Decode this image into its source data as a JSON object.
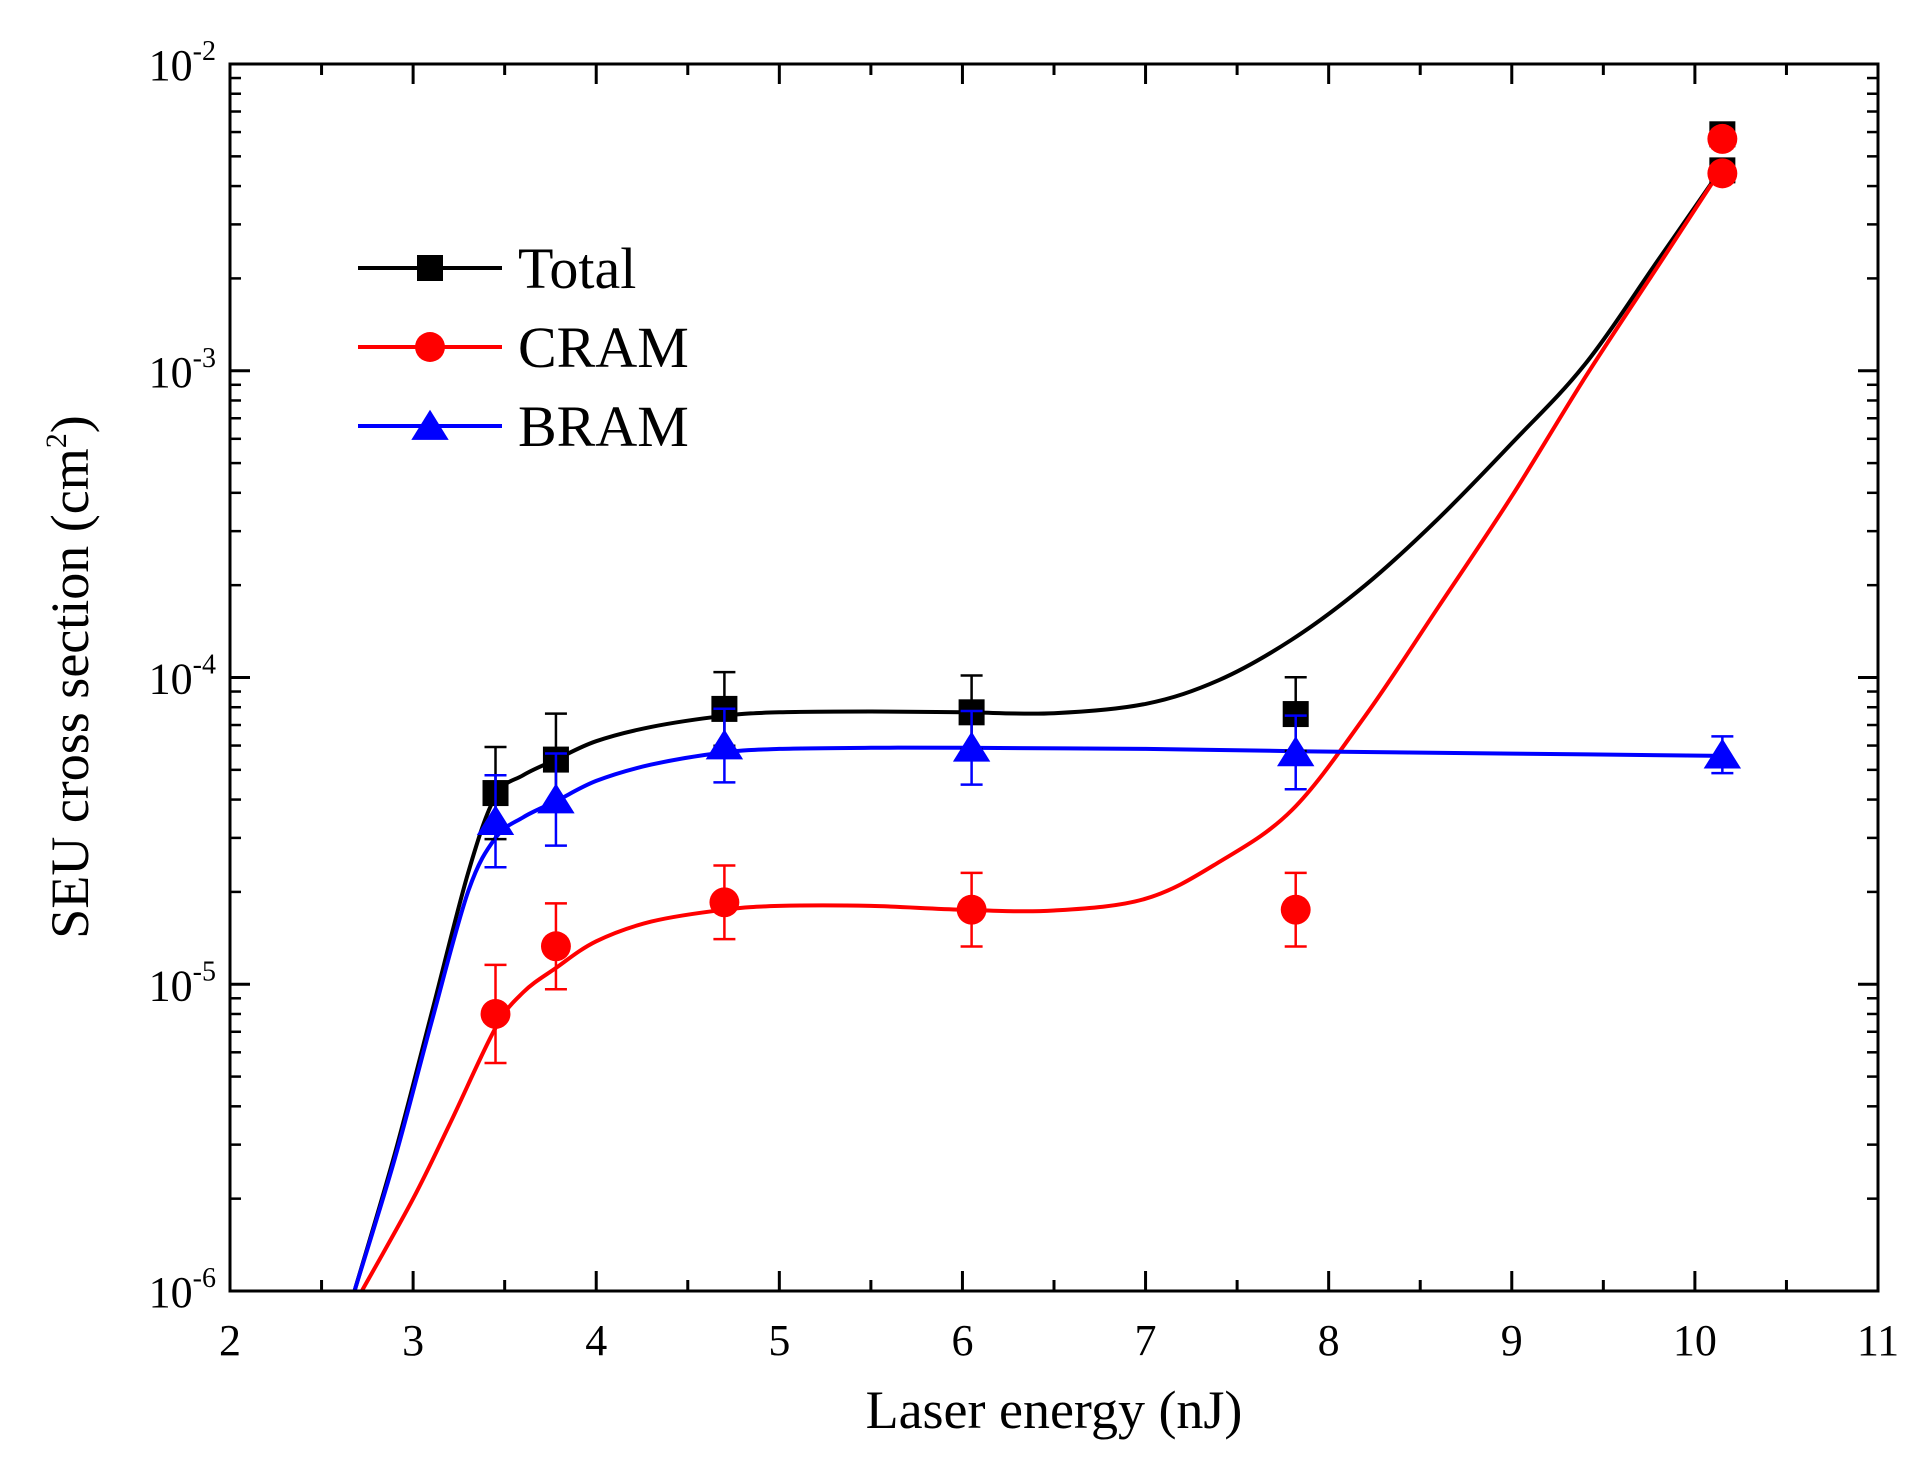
{
  "chart_data": {
    "type": "scatter",
    "title": "",
    "xlabel": "Laser energy (nJ)",
    "ylabel": {
      "main": "SEU cross section (cm",
      "superscript": "2",
      "suffix": ")"
    },
    "xlim": [
      2,
      11
    ],
    "ylim": [
      1e-06,
      0.01
    ],
    "yscale": "log",
    "x_ticks": [
      {
        "value": 2,
        "label": "2"
      },
      {
        "value": 3,
        "label": "3"
      },
      {
        "value": 4,
        "label": "4"
      },
      {
        "value": 5,
        "label": "5"
      },
      {
        "value": 6,
        "label": "6"
      },
      {
        "value": 7,
        "label": "7"
      },
      {
        "value": 8,
        "label": "8"
      },
      {
        "value": 9,
        "label": "9"
      },
      {
        "value": 10,
        "label": "10"
      },
      {
        "value": 11,
        "label": "11"
      }
    ],
    "y_ticks": [
      {
        "value": 1e-06,
        "base": "10",
        "exp": "-6"
      },
      {
        "value": 1e-05,
        "base": "10",
        "exp": "-5"
      },
      {
        "value": 0.0001,
        "base": "10",
        "exp": "-4"
      },
      {
        "value": 0.001,
        "base": "10",
        "exp": "-3"
      },
      {
        "value": 0.01,
        "base": "10",
        "exp": "-2"
      }
    ],
    "legend_position": "upper-left",
    "series": [
      {
        "name": "Total",
        "color": "#000000",
        "marker": "square",
        "x": [
          3.45,
          3.78,
          4.7,
          6.05,
          7.82,
          10.15
        ],
        "y": [
          4.2e-05,
          5.4e-05,
          7.9e-05,
          7.7e-05,
          7.6e-05,
          0.0059
        ],
        "err": [
          0.15,
          0.15,
          0.12,
          0.12,
          0.12,
          0.03
        ],
        "extra_points": [
          {
            "x": 10.15,
            "y": 0.0045
          }
        ],
        "fit": {
          "x": [
            2.68,
            2.9,
            3.1,
            3.3,
            3.45,
            3.6,
            3.78,
            4.0,
            4.3,
            4.7,
            5.0,
            5.5,
            6.0,
            6.5,
            7.0,
            7.4,
            7.8,
            8.2,
            8.6,
            9.0,
            9.4,
            9.8,
            10.15
          ],
          "y": [
            1e-06,
            2.8e-06,
            8e-06,
            2.3e-05,
            4.1e-05,
            4.8e-05,
            5.4e-05,
            6.2e-05,
            6.9e-05,
            7.5e-05,
            7.7e-05,
            7.75e-05,
            7.7e-05,
            7.65e-05,
            8.2e-05,
            9.8e-05,
            0.000133,
            0.0002,
            0.00033,
            0.00058,
            0.00105,
            0.0023,
            0.0046
          ]
        }
      },
      {
        "name": "CRAM",
        "color": "#ff0000",
        "marker": "circle",
        "x": [
          3.45,
          3.78,
          4.7,
          6.05,
          7.82,
          10.15
        ],
        "y": [
          8e-06,
          1.33e-05,
          1.85e-05,
          1.75e-05,
          1.75e-05,
          0.0057
        ],
        "err": [
          0.16,
          0.14,
          0.12,
          0.12,
          0.12,
          0.03
        ],
        "extra_points": [
          {
            "x": 10.15,
            "y": 0.0044
          }
        ],
        "fit": {
          "x": [
            2.72,
            3.0,
            3.2,
            3.45,
            3.6,
            3.78,
            4.0,
            4.3,
            4.7,
            5.0,
            5.5,
            6.0,
            6.5,
            7.0,
            7.4,
            7.8,
            8.2,
            8.6,
            9.0,
            9.4,
            9.8,
            10.15
          ],
          "y": [
            1e-06,
            2e-06,
            3.5e-06,
            7.2e-06,
            9.4e-06,
            1.13e-05,
            1.38e-05,
            1.6e-05,
            1.75e-05,
            1.8e-05,
            1.8e-05,
            1.75e-05,
            1.74e-05,
            1.9e-05,
            2.5e-05,
            3.7e-05,
            7.5e-05,
            0.00017,
            0.00039,
            0.00095,
            0.0022,
            0.0046
          ]
        }
      },
      {
        "name": "BRAM",
        "color": "#0000ff",
        "marker": "triangle",
        "x": [
          3.45,
          3.78,
          4.7,
          6.05,
          7.82,
          10.15
        ],
        "y": [
          3.4e-05,
          4e-05,
          6e-05,
          5.9e-05,
          5.7e-05,
          5.6e-05
        ],
        "err": [
          0.15,
          0.15,
          0.12,
          0.12,
          0.12,
          0.06
        ],
        "fit": {
          "x": [
            2.68,
            2.9,
            3.1,
            3.3,
            3.45,
            3.6,
            3.78,
            4.0,
            4.3,
            4.7,
            5.0,
            5.5,
            6.0,
            7.0,
            7.82,
            9.0,
            10.15
          ],
          "y": [
            1e-06,
            2.7e-06,
            7.5e-06,
            2e-05,
            3e-05,
            3.5e-05,
            3.95e-05,
            4.6e-05,
            5.2e-05,
            5.7e-05,
            5.85e-05,
            5.9e-05,
            5.9e-05,
            5.85e-05,
            5.75e-05,
            5.65e-05,
            5.55e-05
          ]
        }
      }
    ]
  }
}
